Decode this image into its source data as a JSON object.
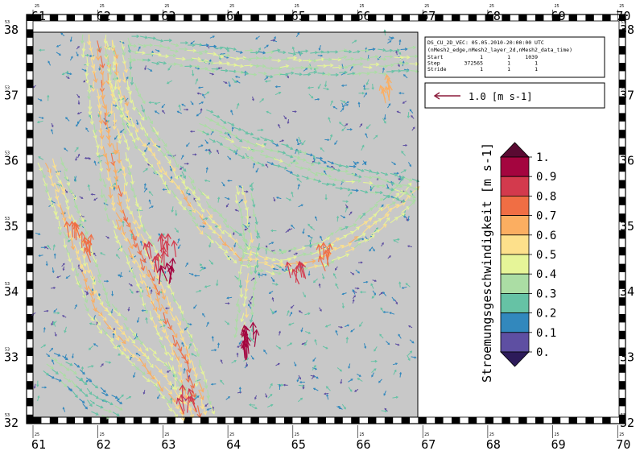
{
  "map": {
    "type": "vector-field",
    "background_color": "#c8c8c8",
    "lon_ticks": [
      {
        "big": "61",
        "small": "25"
      },
      {
        "big": "62",
        "small": "25"
      },
      {
        "big": "63",
        "small": "25"
      },
      {
        "big": "64",
        "small": "25"
      },
      {
        "big": "65",
        "small": "25"
      },
      {
        "big": "66",
        "small": "25"
      },
      {
        "big": "67",
        "small": "25"
      },
      {
        "big": "68",
        "small": "25"
      },
      {
        "big": "69",
        "small": "25"
      },
      {
        "big": "70",
        "small": "25"
      }
    ],
    "lat_ticks": [
      {
        "big": "38",
        "small": "53"
      },
      {
        "big": "37",
        "small": "53"
      },
      {
        "big": "36",
        "small": "53"
      },
      {
        "big": "35",
        "small": "53"
      },
      {
        "big": "34",
        "small": "53"
      },
      {
        "big": "33",
        "small": "53"
      },
      {
        "big": "32",
        "small": "53"
      }
    ]
  },
  "info_box": {
    "title": "DS_CU_2D_VEC: 05.05.2010-20:00:00 UTC",
    "dims": "(nMesh2_edge,nMesh2_layer_2d,nMesh2_data_time)",
    "rows": [
      {
        "label": "Start",
        "values": [
          "1",
          "1",
          "1039"
        ]
      },
      {
        "label": "Step",
        "values": [
          "372565",
          "1",
          "1"
        ]
      },
      {
        "label": "Stride",
        "values": [
          "1",
          "1",
          "1"
        ]
      }
    ]
  },
  "reference_vector": {
    "label": "1.0 [m s-1]",
    "color": "#8b1a3a"
  },
  "colorbar": {
    "title": "Stroemungsgeschwindigkeit [m s-1]",
    "levels": [
      "1.",
      "0.9",
      "0.8",
      "0.7",
      "0.6",
      "0.5",
      "0.4",
      "0.3",
      "0.2",
      "0.1",
      "0."
    ],
    "colors": [
      "#5a0a32",
      "#a4053f",
      "#d33a4d",
      "#f06e44",
      "#fbae61",
      "#fde08b",
      "#e6f598",
      "#abdda4",
      "#66c2a5",
      "#3288bd",
      "#5e4fa2",
      "#2d1b5a"
    ]
  }
}
